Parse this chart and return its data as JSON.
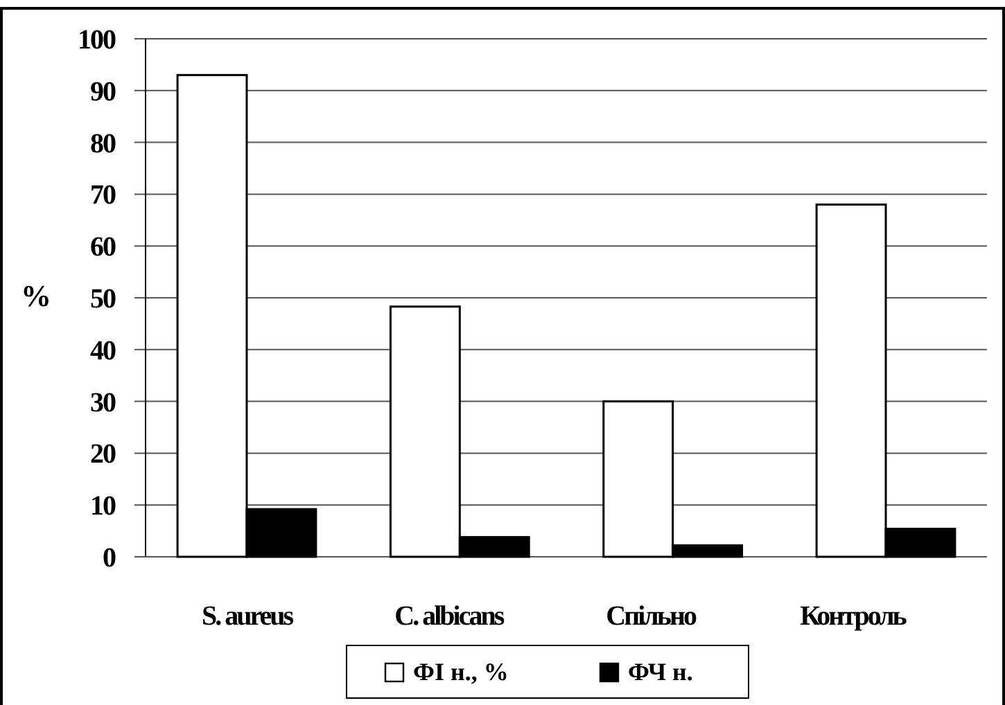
{
  "chart_data": {
    "type": "bar",
    "ylabel": "%",
    "categories": [
      "S. aureus",
      "C. albicans",
      "Спільно",
      "Контроль"
    ],
    "series": [
      {
        "name": "ФІ н., %",
        "color": "#ffffff",
        "values": [
          93,
          48.3,
          30,
          68
        ]
      },
      {
        "name": "ФЧ н.",
        "color": "#000000",
        "values": [
          9.2,
          3.8,
          2.2,
          5.4
        ]
      }
    ],
    "ylim": [
      0,
      100
    ],
    "yticks": [
      0,
      10,
      20,
      30,
      40,
      50,
      60,
      70,
      80,
      90,
      100
    ],
    "grid": "y",
    "legend": "bottom"
  }
}
